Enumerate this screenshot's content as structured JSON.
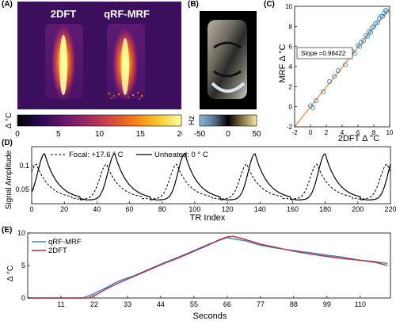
{
  "colors": {
    "inferno_stops": [
      "#000004",
      "#280b54",
      "#65156e",
      "#9f2a63",
      "#d44842",
      "#f57d15",
      "#fac228",
      "#fcffa4"
    ],
    "bg_purple": "#3b0f5c",
    "phase_stops": [
      "#8fb8dc",
      "#5a7590",
      "#000000",
      "#8a7446",
      "#f2eaa8"
    ],
    "scatter_marker": "#2f7fbf",
    "identity_line": "#f08c3c",
    "qrf_line": "#3a87c2",
    "dft_line": "#c0283c"
  },
  "panel_a": {
    "label": "(A)",
    "left_title": "2DFT",
    "right_title": "qRF-MRF",
    "colorbar_unit": "Δ °C",
    "colorbar_ticks": [
      "0",
      "5",
      "10",
      "15",
      "20"
    ],
    "colorbar_range": [
      0,
      20
    ]
  },
  "panel_b": {
    "label": "(B)",
    "colorbar_unit": "Hz",
    "colorbar_ticks": [
      "-50",
      "0",
      "50"
    ],
    "colorbar_range": [
      -50,
      50
    ]
  },
  "panel_d": {
    "label": "(D)",
    "legend_focal": "Focal: +17.6 ° C",
    "legend_unheated": "Unheated: 0 ° C"
  },
  "panel_e": {
    "label": "(E)",
    "legend_qrf": "qRF-MRF",
    "legend_dft": "2DFT"
  },
  "chart_data": [
    {
      "panel": "C",
      "label": "(C)",
      "type": "scatter",
      "xlabel": "2DFT Δ °C",
      "ylabel": "MRF Δ °C",
      "xlim": [
        -2,
        10
      ],
      "ylim": [
        -2,
        10
      ],
      "xticks": [
        -2,
        0,
        2,
        4,
        6,
        8,
        10
      ],
      "yticks": [
        -2,
        0,
        2,
        4,
        6,
        8,
        10
      ],
      "annotation": "Slope =0.98422",
      "slope": 0.98422,
      "points": [
        [
          0.0,
          0.1
        ],
        [
          0.3,
          -0.1
        ],
        [
          0.7,
          0.6
        ],
        [
          1.6,
          1.5
        ],
        [
          2.4,
          2.5
        ],
        [
          3.0,
          3.0
        ],
        [
          3.5,
          3.6
        ],
        [
          4.4,
          4.2
        ],
        [
          5.0,
          5.0
        ],
        [
          5.3,
          5.5
        ],
        [
          5.6,
          5.3
        ],
        [
          6.0,
          6.1
        ],
        [
          6.2,
          6.0
        ],
        [
          6.4,
          6.4
        ],
        [
          6.7,
          6.6
        ],
        [
          7.0,
          7.1
        ],
        [
          7.2,
          7.0
        ],
        [
          7.4,
          7.5
        ],
        [
          7.6,
          7.4
        ],
        [
          7.8,
          7.9
        ],
        [
          8.0,
          8.0
        ],
        [
          8.2,
          8.3
        ],
        [
          8.5,
          8.4
        ],
        [
          8.7,
          8.8
        ],
        [
          8.9,
          9.0
        ],
        [
          9.1,
          9.0
        ],
        [
          9.3,
          9.3
        ],
        [
          9.5,
          9.6
        ],
        [
          9.6,
          9.5
        ]
      ]
    },
    {
      "panel": "D",
      "type": "line",
      "xlabel": "TR Index",
      "ylabel": "Signal Amplitude",
      "xlim": [
        0,
        220
      ],
      "ylim": [
        0.02,
        0.14
      ],
      "xticks": [
        0,
        20,
        40,
        60,
        80,
        100,
        120,
        140,
        160,
        180,
        200,
        220
      ],
      "yticks": [
        0.05,
        0.1
      ],
      "ytick_labels": [
        "0.05",
        "0.1"
      ],
      "period": 43,
      "series": [
        {
          "name": "Focal: +17.6 ° C",
          "style": "dashed",
          "peak_x": 3,
          "baseline": 0.04,
          "peak": 0.103,
          "trough": 0.03
        },
        {
          "name": "Unheated: 0 ° C",
          "style": "solid",
          "peak_x": 8,
          "baseline": 0.033,
          "peak": 0.125,
          "trough": 0.028
        }
      ]
    },
    {
      "panel": "E",
      "type": "line",
      "ylabel": "Δ °C",
      "xlabel": "Seconds",
      "xlim": [
        0,
        120
      ],
      "ylim": [
        0,
        10
      ],
      "xticks": [
        11,
        22,
        33,
        44,
        55,
        66,
        77,
        88,
        99,
        110
      ],
      "yticks": [
        0,
        5,
        10
      ],
      "series": [
        {
          "name": "qRF-MRF",
          "x": [
            0,
            18,
            20,
            22,
            26,
            30,
            35,
            40,
            45,
            50,
            55,
            60,
            63,
            66,
            68,
            72,
            77,
            82,
            88,
            93,
            99,
            104,
            110,
            115,
            119
          ],
          "y": [
            0,
            0,
            0.3,
            0.7,
            1.6,
            2.6,
            3.4,
            4.4,
            5.4,
            6.3,
            7.3,
            8.3,
            8.8,
            9.3,
            9.1,
            8.8,
            8.1,
            7.7,
            7.3,
            7.0,
            6.6,
            6.3,
            5.8,
            5.6,
            5.3
          ]
        },
        {
          "name": "2DFT",
          "x": [
            0,
            20,
            23,
            26,
            30,
            35,
            40,
            45,
            50,
            55,
            60,
            63,
            66,
            68,
            72,
            77,
            82,
            88,
            93,
            99,
            104,
            110,
            115,
            119
          ],
          "y": [
            0,
            0,
            0.6,
            1.4,
            2.3,
            3.3,
            4.3,
            5.3,
            6.2,
            7.2,
            8.2,
            8.9,
            9.4,
            9.5,
            9.0,
            8.3,
            7.8,
            7.2,
            6.8,
            6.4,
            6.1,
            5.8,
            5.5,
            5.0
          ]
        }
      ]
    }
  ]
}
